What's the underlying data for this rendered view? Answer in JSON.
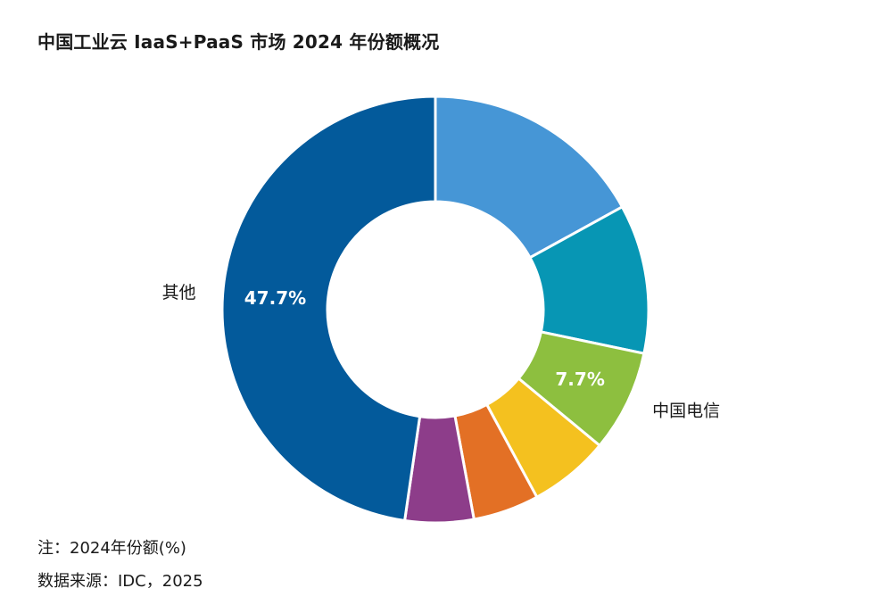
{
  "title": "中国工业云 IaaS+PaaS 市场 2024 年份额概况",
  "chart_data": {
    "type": "pie",
    "style": "donut",
    "slices": [
      {
        "label": "",
        "value": 17.0,
        "value_label": "",
        "color": "#4696d6"
      },
      {
        "label": "",
        "value": 11.3,
        "value_label": "",
        "color": "#0796b4"
      },
      {
        "label": "中国电信",
        "value": 7.7,
        "value_label": "7.7%",
        "color": "#8dbf3f"
      },
      {
        "label": "",
        "value": 6.1,
        "value_label": "",
        "color": "#f4c11f"
      },
      {
        "label": "",
        "value": 5.0,
        "value_label": "",
        "color": "#e37025"
      },
      {
        "label": "",
        "value": 5.2,
        "value_label": "",
        "color": "#8d3d8a"
      },
      {
        "label": "其他",
        "value": 47.7,
        "value_label": "47.7%",
        "color": "#035a9b"
      }
    ]
  },
  "notes": {
    "note": "注：2024年份额(%)",
    "source": "数据来源：IDC，2025"
  }
}
